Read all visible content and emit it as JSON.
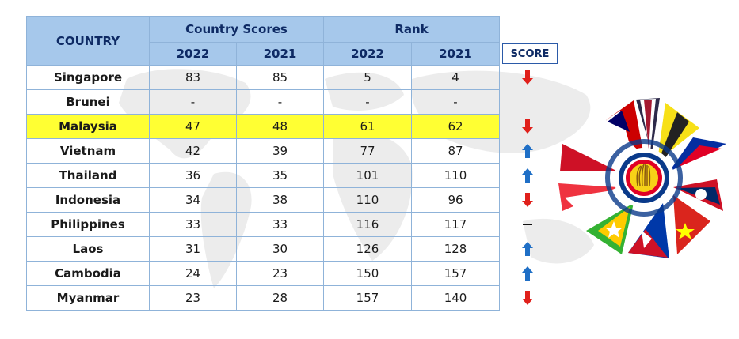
{
  "table": {
    "country_header": "COUNTRY",
    "scores_header": "Country Scores",
    "rank_header": "Rank",
    "years": [
      "2022",
      "2021",
      "2022",
      "2021"
    ]
  },
  "score_label": "SCORE",
  "rows": [
    {
      "country": "Singapore",
      "score_2022": "83",
      "score_2021": "85",
      "rank_2022": "5",
      "rank_2021": "4",
      "trend": "down"
    },
    {
      "country": "Brunei",
      "score_2022": "-",
      "score_2021": "-",
      "rank_2022": "-",
      "rank_2021": "-",
      "trend": "none"
    },
    {
      "country": "Malaysia",
      "score_2022": "47",
      "score_2021": "48",
      "rank_2022": "61",
      "rank_2021": "62",
      "trend": "down",
      "highlight": true
    },
    {
      "country": "Vietnam",
      "score_2022": "42",
      "score_2021": "39",
      "rank_2022": "77",
      "rank_2021": "87",
      "trend": "up"
    },
    {
      "country": "Thailand",
      "score_2022": "36",
      "score_2021": "35",
      "rank_2022": "101",
      "rank_2021": "110",
      "trend": "up"
    },
    {
      "country": "Indonesia",
      "score_2022": "34",
      "score_2021": "38",
      "rank_2022": "110",
      "rank_2021": "96",
      "trend": "down"
    },
    {
      "country": "Philippines",
      "score_2022": "33",
      "score_2021": "33",
      "rank_2022": "116",
      "rank_2021": "117",
      "trend": "same"
    },
    {
      "country": "Laos",
      "score_2022": "31",
      "score_2021": "30",
      "rank_2022": "126",
      "rank_2021": "128",
      "trend": "up"
    },
    {
      "country": "Cambodia",
      "score_2022": "24",
      "score_2021": "23",
      "rank_2022": "150",
      "rank_2021": "157",
      "trend": "up"
    },
    {
      "country": "Myanmar",
      "score_2022": "23",
      "score_2021": "28",
      "rank_2022": "157",
      "rank_2021": "140",
      "trend": "down"
    }
  ],
  "colors": {
    "header_bg": "#a6c8eb",
    "header_text": "#0e2a64",
    "highlight": "#ffff33",
    "down_arrow": "#e0201b",
    "up_arrow": "#1f6fc6",
    "border": "#8fb3d9"
  },
  "icons": {
    "down": "red-down-arrow-icon",
    "up": "blue-up-arrow-icon",
    "same": "dash-icon",
    "emblem": "asean-flags-emblem"
  }
}
